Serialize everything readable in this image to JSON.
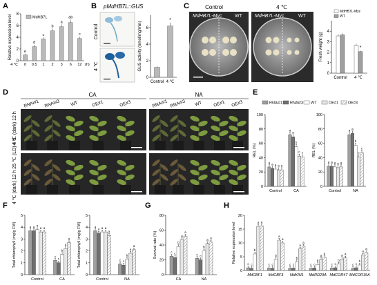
{
  "panel_letters": [
    "A",
    "B",
    "C",
    "D",
    "E",
    "F",
    "G",
    "H"
  ],
  "colors": {
    "bar_gray": "#b9b9b9",
    "rnai1": "#9f9f9f",
    "rnai3": "#6f6f6f",
    "wt": "#ffffff",
    "oe1": "#e6e6e6",
    "oe3_hatch": "#cfcfcf",
    "plant_dark": "#3a3a2a",
    "leaf_green": "#6a8a3a",
    "plate_bg": "#9a9a9a",
    "gus_blue": "#1d5f9c"
  },
  "panel_A": {
    "legend": "MdHB7L",
    "ylabel": "Relative expression level",
    "xlabel": "4 ℃",
    "xunit": "(h)",
    "chart_data": {
      "type": "bar",
      "categories": [
        "0",
        "0.5",
        "1",
        "2",
        "3",
        "6",
        "12"
      ],
      "values": [
        1.0,
        2.4,
        3.7,
        5.1,
        5.8,
        6.5,
        3.8
      ],
      "errors": [
        0.2,
        0.3,
        0.3,
        0.4,
        0.4,
        0.5,
        0.3
      ],
      "letters": [
        "e",
        "d",
        "c",
        "b",
        "a",
        "ab",
        "c"
      ],
      "ylim": [
        0,
        8
      ],
      "yticks": [
        0,
        2,
        4,
        6,
        8
      ]
    }
  },
  "panel_B": {
    "title": "pMdHB7L::GUS",
    "row_labels": [
      "Control",
      "4 ℃"
    ],
    "ylabel": "GUS activity (nmol/mg/min)",
    "chart_data": {
      "type": "bar",
      "categories": [
        "Control",
        "4 ℃"
      ],
      "values": [
        1.2,
        6.2
      ],
      "errors": [
        0.15,
        0.4
      ],
      "letters": [
        "",
        "*"
      ],
      "ylim": [
        0,
        7.5
      ],
      "yticks": [
        0,
        2,
        4,
        6
      ]
    }
  },
  "panel_C": {
    "plate_labels": [
      "Control",
      "4 ℃"
    ],
    "plate_left_label": "MdHB7L-Myc",
    "plate_right_label": "WT",
    "legend": [
      "MdHB7L-Myc",
      "WT"
    ],
    "ylabel": "Fresh weight (g)",
    "chart_data": {
      "type": "bar",
      "categories": [
        "Control",
        "4 ℃"
      ],
      "series": [
        {
          "name": "MdHB7L-Myc",
          "values": [
            3.55,
            2.65
          ]
        },
        {
          "name": "WT",
          "values": [
            3.65,
            2.05
          ]
        }
      ],
      "errors": [
        [
          0.15,
          0.15
        ],
        [
          0.15,
          0.1
        ]
      ],
      "letters": [
        "",
        "*"
      ],
      "ylim": [
        0,
        5
      ],
      "yticks": [
        0,
        1,
        2,
        3,
        4
      ]
    }
  },
  "panel_D": {
    "group_labels": [
      "CA",
      "NA"
    ],
    "genotypes_CA": [
      "RNAi#1",
      "RNAi#3",
      "WT",
      "OE#1",
      "OE#3"
    ],
    "genotypes_NA": [
      "RNAi#1",
      "RNAi#3",
      "WT",
      "OE#1",
      "OE#3"
    ],
    "row_labels": [
      "4 ℃ (dark) 12 h",
      "4 ℃ (dark) 12 h 25 ℃ (LD) 4 d"
    ]
  },
  "panel_E": {
    "legend": [
      "RNAi#1",
      "RNAi#3",
      "WT",
      "OE#1",
      "OE#3"
    ],
    "ylabel": "REL (%)",
    "charts": [
      {
        "type": "bar",
        "categories": [
          "Control",
          "CA"
        ],
        "series": [
          {
            "name": "RNAi#1",
            "values": [
              27,
              72
            ]
          },
          {
            "name": "RNAi#3",
            "values": [
              25,
              69
            ]
          },
          {
            "name": "WT",
            "values": [
              24,
              55
            ]
          },
          {
            "name": "OE#1",
            "values": [
              23,
              42
            ]
          },
          {
            "name": "OE#3",
            "values": [
              23,
              41
            ]
          }
        ],
        "letters": [
          [
            "a",
            "a",
            "a",
            "a",
            "a"
          ],
          [
            "a",
            "a",
            "b",
            "c",
            "c"
          ]
        ],
        "ylim": [
          0,
          100
        ],
        "yticks": [
          0,
          20,
          40,
          60,
          80,
          100
        ]
      },
      {
        "type": "bar",
        "categories": [
          "Control",
          "NA"
        ],
        "series": [
          {
            "name": "RNAi#1",
            "values": [
              28,
              72
            ]
          },
          {
            "name": "RNAi#3",
            "values": [
              28,
              74
            ]
          },
          {
            "name": "WT",
            "values": [
              27,
              57
            ]
          },
          {
            "name": "OE#1",
            "values": [
              26,
              41
            ]
          },
          {
            "name": "OE#3",
            "values": [
              27,
              47
            ]
          }
        ],
        "letters": [
          [
            "a",
            "a",
            "a",
            "a",
            "a"
          ],
          [
            "a",
            "a",
            "b",
            "c",
            "c"
          ]
        ],
        "ylim": [
          0,
          100
        ],
        "yticks": [
          0,
          20,
          40,
          60,
          80,
          100
        ]
      }
    ]
  },
  "panel_F": {
    "ylabel": "Total chlorophyll (mg/g FW)",
    "charts": [
      {
        "type": "bar",
        "categories": [
          "Control",
          "CA"
        ],
        "series": [
          {
            "name": "RNAi#1",
            "values": [
              3.7,
              1.2
            ]
          },
          {
            "name": "RNAi#3",
            "values": [
              3.7,
              1.0
            ]
          },
          {
            "name": "WT",
            "values": [
              3.8,
              1.7
            ]
          },
          {
            "name": "OE#1",
            "values": [
              3.6,
              2.2
            ]
          },
          {
            "name": "OE#3",
            "values": [
              3.6,
              2.7
            ]
          }
        ],
        "letters": [
          [
            "a",
            "a",
            "a",
            "a",
            "a"
          ],
          [
            "c",
            "c",
            "b",
            "a",
            "a"
          ]
        ],
        "ylim": [
          0,
          5
        ],
        "yticks": [
          0,
          1,
          2,
          3,
          4,
          5
        ]
      },
      {
        "type": "bar",
        "categories": [
          "Control",
          "NA"
        ],
        "series": [
          {
            "name": "RNAi#1",
            "values": [
              3.7,
              0.9
            ]
          },
          {
            "name": "RNAi#3",
            "values": [
              3.5,
              0.8
            ]
          },
          {
            "name": "WT",
            "values": [
              3.6,
              1.3
            ]
          },
          {
            "name": "OE#1",
            "values": [
              3.6,
              1.8
            ]
          },
          {
            "name": "OE#3",
            "values": [
              3.3,
              2.1
            ]
          }
        ],
        "letters": [
          [
            "a",
            "a",
            "a",
            "a",
            "a"
          ],
          [
            "c",
            "c",
            "b",
            "a",
            "a"
          ]
        ],
        "ylim": [
          0,
          5
        ],
        "yticks": [
          0,
          1,
          2,
          3,
          4,
          5
        ]
      }
    ]
  },
  "panel_G": {
    "ylabel": "Survival rate (%)",
    "chart_data": {
      "type": "bar",
      "categories": [
        "CA",
        "NA"
      ],
      "series": [
        {
          "name": "RNAi#1",
          "values": [
            25,
            22
          ]
        },
        {
          "name": "RNAi#3",
          "values": [
            23,
            20
          ]
        },
        {
          "name": "WT",
          "values": [
            38,
            32
          ]
        },
        {
          "name": "OE#1",
          "values": [
            47,
            42
          ]
        },
        {
          "name": "OE#3",
          "values": [
            52,
            44
          ]
        }
      ],
      "letters": [
        [
          "c",
          "c",
          "b",
          "a",
          "a"
        ],
        [
          "c",
          "c",
          "b",
          "a",
          "a"
        ]
      ],
      "ylim": [
        0,
        80
      ],
      "yticks": [
        0,
        20,
        40,
        60,
        80
      ]
    }
  },
  "panel_H": {
    "ylabel": "Relative expression level",
    "chart_data": {
      "type": "bar",
      "categories": [
        "MdCBF1",
        "MdCBF3",
        "MdKIN1",
        "MdRD29A",
        "MdCOR47",
        "MdCOR15A"
      ],
      "series": [
        {
          "name": "RNAi#1",
          "values": [
            1.0,
            0.9,
            0.8,
            0.8,
            0.9,
            0.8
          ]
        },
        {
          "name": "RNAi#3",
          "values": [
            0.8,
            0.8,
            0.9,
            0.9,
            1.0,
            1.0
          ]
        },
        {
          "name": "WT",
          "values": [
            6.0,
            4.0,
            3.2,
            2.2,
            2.3,
            2.0
          ]
        },
        {
          "name": "OE#1",
          "values": [
            16.0,
            11.0,
            7.8,
            4.0,
            4.2,
            5.6
          ]
        },
        {
          "name": "OE#3",
          "values": [
            16.2,
            10.0,
            8.8,
            4.8,
            4.6,
            6.5
          ]
        }
      ],
      "letters": [
        [
          "c",
          "c",
          "b",
          "a",
          "a"
        ],
        [
          "c",
          "c",
          "b",
          "a",
          "a"
        ],
        [
          "c",
          "c",
          "b",
          "a",
          "a"
        ],
        [
          "c",
          "c",
          "b",
          "a",
          "a"
        ],
        [
          "c",
          "c",
          "b",
          "a",
          "a"
        ],
        [
          "c",
          "c",
          "b",
          "a",
          "a"
        ]
      ],
      "ylim": [
        0,
        20
      ],
      "yticks": [
        0,
        5,
        10,
        15,
        20
      ]
    }
  }
}
